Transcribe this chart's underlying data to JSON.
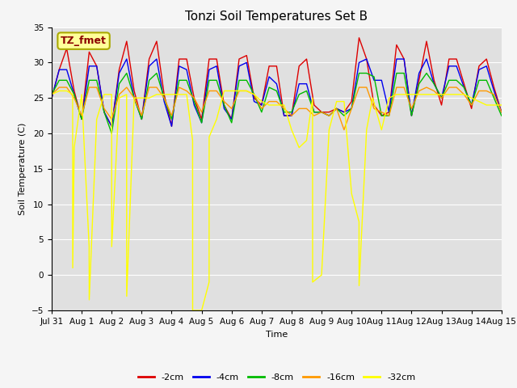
{
  "title": "Tonzi Soil Temperatures Set B",
  "xlabel": "Time",
  "ylabel": "Soil Temperature (C)",
  "ylim": [
    -5,
    35
  ],
  "yticks": [
    -5,
    0,
    5,
    10,
    15,
    20,
    25,
    30,
    35
  ],
  "xlim": [
    0,
    15
  ],
  "xtick_labels": [
    "Jul 31",
    "Aug 1",
    "Aug 2",
    "Aug 3",
    "Aug 4",
    "Aug 5",
    "Aug 6",
    "Aug 7",
    "Aug 8",
    "Aug 9",
    "Aug 10",
    "Aug 11",
    "Aug 12",
    "Aug 13",
    "Aug 14",
    "Aug 15"
  ],
  "annotation_text": "TZ_fmet",
  "plot_bg_color": "#e0e0e0",
  "fig_bg_color": "#f5f5f5",
  "title_fontsize": 11,
  "label_fontsize": 8,
  "tick_fontsize": 7.5,
  "legend_fontsize": 8,
  "series": {
    "-2cm": {
      "color": "#dd0000",
      "x": [
        0.0,
        0.25,
        0.5,
        0.75,
        1.0,
        1.25,
        1.5,
        1.75,
        2.0,
        2.25,
        2.5,
        2.75,
        3.0,
        3.25,
        3.5,
        3.75,
        4.0,
        4.25,
        4.5,
        4.75,
        5.0,
        5.25,
        5.5,
        5.75,
        6.0,
        6.25,
        6.5,
        6.75,
        7.0,
        7.25,
        7.5,
        7.75,
        8.0,
        8.25,
        8.5,
        8.75,
        9.0,
        9.25,
        9.5,
        9.75,
        10.0,
        10.25,
        10.5,
        10.75,
        11.0,
        11.25,
        11.5,
        11.75,
        12.0,
        12.25,
        12.5,
        12.75,
        13.0,
        13.25,
        13.5,
        13.75,
        14.0,
        14.25,
        14.5,
        14.75,
        15.0
      ],
      "y": [
        25.0,
        29.0,
        32.0,
        26.0,
        22.0,
        31.5,
        29.5,
        23.0,
        21.0,
        29.0,
        33.0,
        26.0,
        22.0,
        30.5,
        33.0,
        25.5,
        21.0,
        30.5,
        30.5,
        25.0,
        22.0,
        30.5,
        30.5,
        24.0,
        22.0,
        30.5,
        31.0,
        25.0,
        24.0,
        29.5,
        29.5,
        22.5,
        22.5,
        29.5,
        30.5,
        24.0,
        23.0,
        23.0,
        23.5,
        23.0,
        24.5,
        33.5,
        30.5,
        24.0,
        22.5,
        23.0,
        32.5,
        30.5,
        22.5,
        27.5,
        33.0,
        27.5,
        24.0,
        30.5,
        30.5,
        27.0,
        23.5,
        29.5,
        30.5,
        26.5,
        23.0
      ]
    },
    "-4cm": {
      "color": "#0000ee",
      "x": [
        0.0,
        0.25,
        0.5,
        0.75,
        1.0,
        1.25,
        1.5,
        1.75,
        2.0,
        2.25,
        2.5,
        2.75,
        3.0,
        3.25,
        3.5,
        3.75,
        4.0,
        4.25,
        4.5,
        4.75,
        5.0,
        5.25,
        5.5,
        5.75,
        6.0,
        6.25,
        6.5,
        6.75,
        7.0,
        7.25,
        7.5,
        7.75,
        8.0,
        8.25,
        8.5,
        8.75,
        9.0,
        9.25,
        9.5,
        9.75,
        10.0,
        10.25,
        10.5,
        10.75,
        11.0,
        11.25,
        11.5,
        11.75,
        12.0,
        12.25,
        12.5,
        12.75,
        13.0,
        13.25,
        13.5,
        13.75,
        14.0,
        14.25,
        14.5,
        14.75,
        15.0
      ],
      "y": [
        25.0,
        29.0,
        29.0,
        25.5,
        22.0,
        29.5,
        29.5,
        23.0,
        21.0,
        28.5,
        30.5,
        25.0,
        22.0,
        29.5,
        30.5,
        24.5,
        21.0,
        29.5,
        29.0,
        24.0,
        21.5,
        29.0,
        29.5,
        23.5,
        22.0,
        29.5,
        30.0,
        24.5,
        24.0,
        28.0,
        27.0,
        22.5,
        22.5,
        27.0,
        27.0,
        23.0,
        23.0,
        22.5,
        23.5,
        23.0,
        23.5,
        30.0,
        30.5,
        27.5,
        27.5,
        23.0,
        30.5,
        30.5,
        22.5,
        28.5,
        30.5,
        27.0,
        25.0,
        29.5,
        29.5,
        26.5,
        24.0,
        29.0,
        29.5,
        26.0,
        23.0
      ]
    },
    "-8cm": {
      "color": "#00bb00",
      "x": [
        0.0,
        0.25,
        0.5,
        0.75,
        1.0,
        1.25,
        1.5,
        1.75,
        2.0,
        2.25,
        2.5,
        2.75,
        3.0,
        3.25,
        3.5,
        3.75,
        4.0,
        4.25,
        4.5,
        4.75,
        5.0,
        5.25,
        5.5,
        5.75,
        6.0,
        6.25,
        6.5,
        6.75,
        7.0,
        7.25,
        7.5,
        7.75,
        8.0,
        8.25,
        8.5,
        8.75,
        9.0,
        9.25,
        9.5,
        9.75,
        10.0,
        10.25,
        10.5,
        10.75,
        11.0,
        11.25,
        11.5,
        11.75,
        12.0,
        12.25,
        12.5,
        12.75,
        13.0,
        13.25,
        13.5,
        13.75,
        14.0,
        14.25,
        14.5,
        14.75,
        15.0
      ],
      "y": [
        25.5,
        27.5,
        27.5,
        25.5,
        22.0,
        27.5,
        27.5,
        23.0,
        20.0,
        27.0,
        28.5,
        25.0,
        22.0,
        27.5,
        28.5,
        25.0,
        22.0,
        27.5,
        27.5,
        24.5,
        21.5,
        27.5,
        27.5,
        24.0,
        21.5,
        27.5,
        27.5,
        25.5,
        23.0,
        26.5,
        26.0,
        23.0,
        23.0,
        25.5,
        26.0,
        23.0,
        23.0,
        22.5,
        23.5,
        22.5,
        23.5,
        28.5,
        28.5,
        28.0,
        22.5,
        22.5,
        28.5,
        28.5,
        22.5,
        27.0,
        28.5,
        27.0,
        25.0,
        27.5,
        27.5,
        26.5,
        24.0,
        27.5,
        27.5,
        25.0,
        22.5
      ]
    },
    "-16cm": {
      "color": "#ff9900",
      "x": [
        0.0,
        0.25,
        0.5,
        0.75,
        1.0,
        1.25,
        1.5,
        1.75,
        2.0,
        2.25,
        2.5,
        2.75,
        3.0,
        3.25,
        3.5,
        3.75,
        4.0,
        4.25,
        4.5,
        4.75,
        5.0,
        5.25,
        5.5,
        5.75,
        6.0,
        6.25,
        6.5,
        6.75,
        7.0,
        7.25,
        7.5,
        7.75,
        8.0,
        8.25,
        8.5,
        8.75,
        9.0,
        9.25,
        9.5,
        9.75,
        10.0,
        10.25,
        10.5,
        10.75,
        11.0,
        11.25,
        11.5,
        11.75,
        12.0,
        12.25,
        12.5,
        12.75,
        13.0,
        13.25,
        13.5,
        13.75,
        14.0,
        14.25,
        14.5,
        14.75,
        15.0
      ],
      "y": [
        25.5,
        26.5,
        26.5,
        25.0,
        22.5,
        26.5,
        26.5,
        23.5,
        22.0,
        25.5,
        26.5,
        25.0,
        22.5,
        26.5,
        26.5,
        25.0,
        22.5,
        26.5,
        26.0,
        25.0,
        23.0,
        26.0,
        26.0,
        24.5,
        23.5,
        26.0,
        26.0,
        25.5,
        23.5,
        24.5,
        24.5,
        23.5,
        22.5,
        23.5,
        23.5,
        22.5,
        23.0,
        22.5,
        23.5,
        20.5,
        23.5,
        26.5,
        26.5,
        23.5,
        23.0,
        22.5,
        26.5,
        26.5,
        23.5,
        26.0,
        26.5,
        26.0,
        25.0,
        26.5,
        26.5,
        25.5,
        24.0,
        26.0,
        26.0,
        25.5,
        23.0
      ]
    },
    "-32cm": {
      "color": "#ffff00",
      "x": [
        0.0,
        0.25,
        0.5,
        0.699,
        0.701,
        0.75,
        1.0,
        1.249,
        1.251,
        1.5,
        1.75,
        1.999,
        2.001,
        2.25,
        2.499,
        2.501,
        2.75,
        3.0,
        3.25,
        3.5,
        3.75,
        4.0,
        4.25,
        4.5,
        4.699,
        4.701,
        5.0,
        5.249,
        5.251,
        5.5,
        5.75,
        5.999,
        6.001,
        6.25,
        6.5,
        6.75,
        7.0,
        7.25,
        7.5,
        7.75,
        8.0,
        8.249,
        8.251,
        8.5,
        8.699,
        8.701,
        9.0,
        9.25,
        9.5,
        9.75,
        10.0,
        10.249,
        10.251,
        10.5,
        10.699,
        10.701,
        11.0,
        11.25,
        11.5,
        11.75,
        12.0,
        12.25,
        12.5,
        12.75,
        13.0,
        13.25,
        13.5,
        13.75,
        14.0,
        14.25,
        14.5,
        14.75,
        15.0
      ],
      "y": [
        25.5,
        26.0,
        26.0,
        25.5,
        1.0,
        18.0,
        25.5,
        4.0,
        -3.5,
        22.0,
        25.5,
        25.5,
        4.0,
        25.0,
        25.5,
        -3.0,
        25.0,
        25.0,
        25.0,
        25.5,
        25.5,
        25.5,
        25.5,
        25.5,
        19.0,
        -5.0,
        -5.0,
        -1.0,
        19.5,
        22.0,
        26.0,
        26.0,
        26.0,
        26.0,
        26.0,
        25.5,
        24.5,
        24.0,
        24.0,
        24.0,
        20.5,
        18.0,
        18.0,
        19.0,
        25.0,
        -1.0,
        0.0,
        20.5,
        24.5,
        24.5,
        11.5,
        7.5,
        -1.5,
        20.5,
        25.0,
        25.0,
        20.5,
        25.0,
        25.5,
        25.5,
        25.5,
        25.5,
        25.5,
        25.5,
        25.5,
        25.5,
        25.5,
        25.5,
        25.0,
        24.5,
        24.0,
        24.0,
        24.0
      ]
    }
  }
}
